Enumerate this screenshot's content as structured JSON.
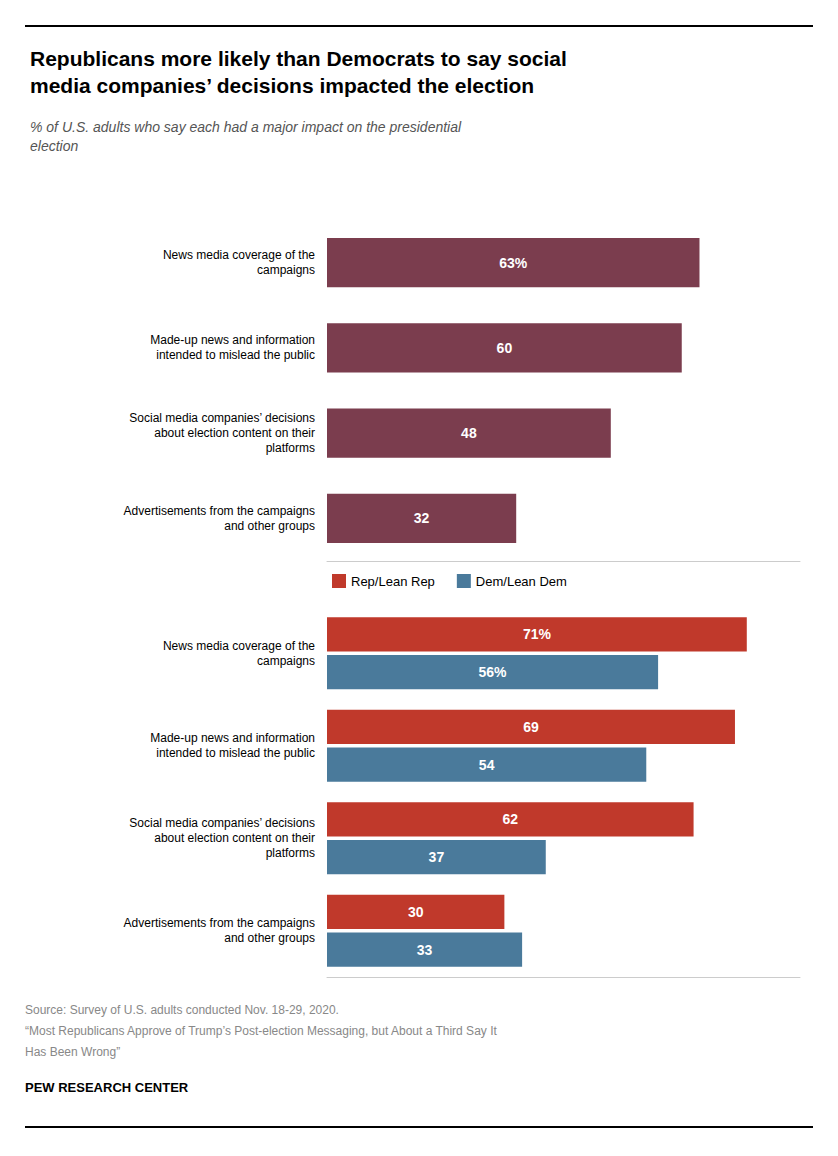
{
  "chart_data": [
    {
      "type": "bar",
      "title": "Republicans more likely than Democrats to say social\nmedia companies’ decisions impacted the election",
      "subtitle": "% of U.S. adults who say each had a major impact on the presidential\nelection",
      "orientation": "horizontal",
      "categories": [
        "News media coverage of the\ncampaigns",
        "Made-up news and information\nintended to mislead the public",
        "Social media companies’ decisions\nabout election content on their\nplatforms",
        "Advertisements from the campaigns\nand other groups"
      ],
      "values": [
        63,
        60,
        48,
        32
      ],
      "value_labels": [
        "63%",
        "60",
        "48",
        "32"
      ],
      "color": "#7b3d4e",
      "data_labels": true,
      "xlim": [
        0,
        80
      ],
      "tick_labels": "y",
      "grid": false
    },
    {
      "type": "bar",
      "orientation": "horizontal",
      "categories": [
        "News media coverage of the\ncampaigns",
        "Made-up news and information\nintended to mislead the public",
        "Social media companies’ decisions\nabout election content on their\nplatforms",
        "Advertisements from the campaigns\nand other groups"
      ],
      "series": [
        {
          "name": "Rep/Lean Rep",
          "color": "#c0392b",
          "values": [
            71,
            69,
            62,
            30
          ],
          "value_labels": [
            "71%",
            "69",
            "62",
            "30"
          ]
        },
        {
          "name": "Dem/Lean Dem",
          "color": "#4a7a9b",
          "values": [
            56,
            54,
            37,
            33
          ],
          "value_labels": [
            "56%",
            "54",
            "37",
            "33"
          ]
        }
      ],
      "legend": "upper left",
      "data_labels": true,
      "xlim": [
        0,
        80
      ],
      "tick_labels": "y",
      "grid": false,
      "annotations": [
        "Source: Survey of U.S. adults conducted Nov. 18-29, 2020.",
        "“Most Republicans Approve of Trump’s Post-election Messaging, but About a Third Say It",
        "Has Been Wrong”",
        "PEW RESEARCH CENTER"
      ]
    }
  ]
}
